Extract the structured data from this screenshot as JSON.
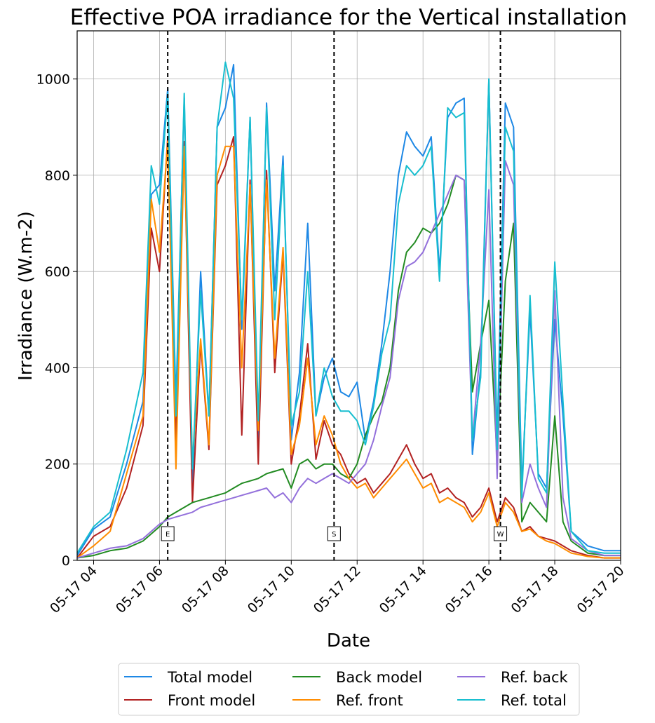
{
  "chart_data": {
    "type": "line",
    "title": "Effective POA irradiance for the Vertical installation",
    "xlabel": "Date",
    "ylabel": "Irradiance (W.m-2)",
    "xlim": [
      3.5,
      20
    ],
    "ylim": [
      0,
      1100
    ],
    "x_ticks": [
      4,
      6,
      8,
      10,
      12,
      14,
      16,
      18,
      20
    ],
    "x_tick_labels": [
      "05-17 04",
      "05-17 06",
      "05-17 08",
      "05-17 10",
      "05-17 12",
      "05-17 14",
      "05-17 16",
      "05-17 18",
      "05-17 20"
    ],
    "y_ticks": [
      0,
      200,
      400,
      600,
      800,
      1000
    ],
    "y_tick_labels": [
      "0",
      "200",
      "400",
      "600",
      "800",
      "1000"
    ],
    "grid": true,
    "legend_position": "bottom-center, below axes, 3 columns",
    "vertical_markers": [
      {
        "x": 6.25,
        "label": "E"
      },
      {
        "x": 11.3,
        "label": "S"
      },
      {
        "x": 16.35,
        "label": "W"
      }
    ],
    "series": [
      {
        "name": "Total model",
        "color": "#1e88e5",
        "x": [
          3.5,
          4,
          4.5,
          5,
          5.5,
          5.75,
          6,
          6.25,
          6.5,
          6.75,
          7,
          7.25,
          7.5,
          7.75,
          8,
          8.25,
          8.5,
          8.75,
          9,
          9.25,
          9.5,
          9.75,
          10,
          10.25,
          10.5,
          10.75,
          11,
          11.25,
          11.5,
          11.75,
          12,
          12.25,
          12.5,
          12.75,
          13,
          13.25,
          13.5,
          13.75,
          14,
          14.25,
          14.5,
          14.75,
          15,
          15.25,
          15.5,
          15.75,
          16,
          16.25,
          16.5,
          16.75,
          17,
          17.25,
          17.5,
          17.75,
          18,
          18.25,
          18.5,
          19,
          19.5,
          20
        ],
        "y": [
          10,
          65,
          90,
          200,
          330,
          760,
          780,
          980,
          330,
          960,
          150,
          600,
          300,
          900,
          940,
          1030,
          480,
          920,
          250,
          950,
          560,
          840,
          250,
          390,
          700,
          300,
          380,
          420,
          350,
          340,
          370,
          250,
          330,
          450,
          600,
          800,
          890,
          860,
          840,
          880,
          600,
          920,
          950,
          960,
          220,
          400,
          1000,
          250,
          950,
          900,
          150,
          520,
          180,
          150,
          500,
          300,
          60,
          30,
          20,
          20
        ]
      },
      {
        "name": "Front model",
        "color": "#b22222",
        "x": [
          3.5,
          4,
          4.5,
          5,
          5.5,
          5.75,
          6,
          6.25,
          6.5,
          6.75,
          7,
          7.25,
          7.5,
          7.75,
          8,
          8.25,
          8.5,
          8.75,
          9,
          9.25,
          9.5,
          9.75,
          10,
          10.25,
          10.5,
          10.75,
          11,
          11.25,
          11.5,
          11.75,
          12,
          12.25,
          12.5,
          12.75,
          13,
          13.25,
          13.5,
          13.75,
          14,
          14.25,
          14.5,
          14.75,
          15,
          15.25,
          15.5,
          15.75,
          16,
          16.25,
          16.5,
          16.75,
          17,
          17.25,
          17.5,
          17.75,
          18,
          18.25,
          18.5,
          19,
          19.5,
          20
        ],
        "y": [
          5,
          50,
          70,
          150,
          280,
          690,
          600,
          880,
          240,
          870,
          120,
          450,
          230,
          780,
          820,
          880,
          260,
          790,
          200,
          810,
          390,
          640,
          200,
          300,
          450,
          210,
          290,
          240,
          220,
          180,
          160,
          170,
          140,
          160,
          180,
          210,
          240,
          200,
          170,
          180,
          140,
          150,
          130,
          120,
          90,
          110,
          150,
          80,
          130,
          110,
          60,
          70,
          50,
          45,
          40,
          30,
          20,
          10,
          5,
          5
        ]
      },
      {
        "name": "Back model",
        "color": "#228b22",
        "x": [
          3.5,
          4,
          4.5,
          5,
          5.5,
          5.75,
          6,
          6.25,
          6.5,
          6.75,
          7,
          7.25,
          7.5,
          7.75,
          8,
          8.25,
          8.5,
          8.75,
          9,
          9.25,
          9.5,
          9.75,
          10,
          10.25,
          10.5,
          10.75,
          11,
          11.25,
          11.5,
          11.75,
          12,
          12.25,
          12.5,
          12.75,
          13,
          13.25,
          13.5,
          13.75,
          14,
          14.25,
          14.5,
          14.75,
          15,
          15.25,
          15.5,
          15.75,
          16,
          16.25,
          16.5,
          16.75,
          17,
          17.25,
          17.5,
          17.75,
          18,
          18.25,
          18.5,
          19,
          19.5,
          20
        ],
        "y": [
          5,
          10,
          20,
          25,
          40,
          55,
          70,
          90,
          100,
          110,
          120,
          125,
          130,
          135,
          140,
          150,
          160,
          165,
          170,
          180,
          185,
          190,
          150,
          200,
          210,
          190,
          200,
          200,
          180,
          170,
          200,
          260,
          300,
          330,
          400,
          560,
          640,
          660,
          690,
          680,
          700,
          740,
          800,
          790,
          350,
          450,
          540,
          210,
          580,
          700,
          80,
          120,
          100,
          80,
          300,
          80,
          40,
          15,
          10,
          10
        ]
      },
      {
        "name": "Ref. front",
        "color": "#ff8c00",
        "x": [
          3.5,
          4,
          4.5,
          5,
          5.5,
          5.75,
          6,
          6.25,
          6.5,
          6.75,
          7,
          7.25,
          7.5,
          7.75,
          8,
          8.25,
          8.5,
          8.75,
          9,
          9.25,
          9.5,
          9.75,
          10,
          10.25,
          10.5,
          10.75,
          11,
          11.25,
          11.5,
          11.75,
          12,
          12.25,
          12.5,
          12.75,
          13,
          13.25,
          13.5,
          13.75,
          14,
          14.25,
          14.5,
          14.75,
          15,
          15.25,
          15.5,
          15.75,
          16,
          16.25,
          16.5,
          16.75,
          17,
          17.25,
          17.5,
          17.75,
          18,
          18.25,
          18.5,
          19,
          19.5,
          20
        ],
        "y": [
          5,
          30,
          60,
          180,
          300,
          750,
          640,
          870,
          190,
          860,
          200,
          460,
          240,
          800,
          860,
          860,
          400,
          780,
          270,
          790,
          420,
          650,
          220,
          280,
          420,
          240,
          300,
          260,
          200,
          170,
          150,
          160,
          130,
          150,
          170,
          190,
          210,
          180,
          150,
          160,
          120,
          130,
          120,
          110,
          80,
          100,
          140,
          70,
          120,
          100,
          60,
          65,
          50,
          40,
          35,
          25,
          15,
          8,
          5,
          5
        ]
      },
      {
        "name": "Ref. back",
        "color": "#9370db",
        "x": [
          3.5,
          4,
          4.5,
          5,
          5.5,
          5.75,
          6,
          6.25,
          6.5,
          6.75,
          7,
          7.25,
          7.5,
          7.75,
          8,
          8.25,
          8.5,
          8.75,
          9,
          9.25,
          9.5,
          9.75,
          10,
          10.25,
          10.5,
          10.75,
          11,
          11.25,
          11.5,
          11.75,
          12,
          12.25,
          12.5,
          12.75,
          13,
          13.25,
          13.5,
          13.75,
          14,
          14.25,
          14.5,
          14.75,
          15,
          15.25,
          15.5,
          15.75,
          16,
          16.25,
          16.5,
          16.75,
          17,
          17.25,
          17.5,
          17.75,
          18,
          18.25,
          18.5,
          19,
          19.5,
          20
        ],
        "y": [
          5,
          15,
          25,
          30,
          45,
          60,
          75,
          85,
          90,
          95,
          100,
          110,
          115,
          120,
          125,
          130,
          135,
          140,
          145,
          150,
          130,
          140,
          120,
          150,
          170,
          160,
          170,
          180,
          170,
          160,
          180,
          200,
          250,
          320,
          380,
          540,
          610,
          620,
          640,
          680,
          720,
          760,
          800,
          790,
          250,
          450,
          770,
          170,
          830,
          780,
          120,
          200,
          150,
          110,
          560,
          130,
          45,
          20,
          10,
          10
        ]
      },
      {
        "name": "Ref. total",
        "color": "#17becf",
        "x": [
          3.5,
          4,
          4.5,
          5,
          5.5,
          5.75,
          6,
          6.25,
          6.5,
          6.75,
          7,
          7.25,
          7.5,
          7.75,
          8,
          8.25,
          8.5,
          8.75,
          9,
          9.25,
          9.5,
          9.75,
          10,
          10.25,
          10.5,
          10.75,
          11,
          11.25,
          11.5,
          11.75,
          12,
          12.25,
          12.5,
          12.75,
          13,
          13.25,
          13.5,
          13.75,
          14,
          14.25,
          14.5,
          14.75,
          15,
          15.25,
          15.5,
          15.75,
          16,
          16.25,
          16.5,
          16.75,
          17,
          17.25,
          17.5,
          17.75,
          18,
          18.25,
          18.5,
          19,
          19.5,
          20
        ],
        "y": [
          15,
          70,
          100,
          230,
          390,
          820,
          740,
          970,
          300,
          970,
          190,
          560,
          300,
          900,
          1035,
          960,
          500,
          920,
          290,
          940,
          500,
          820,
          280,
          350,
          600,
          300,
          400,
          340,
          310,
          310,
          290,
          240,
          320,
          430,
          500,
          740,
          820,
          800,
          820,
          860,
          580,
          940,
          920,
          930,
          250,
          380,
          1000,
          230,
          900,
          850,
          130,
          550,
          170,
          140,
          620,
          330,
          60,
          20,
          15,
          15
        ]
      }
    ]
  }
}
